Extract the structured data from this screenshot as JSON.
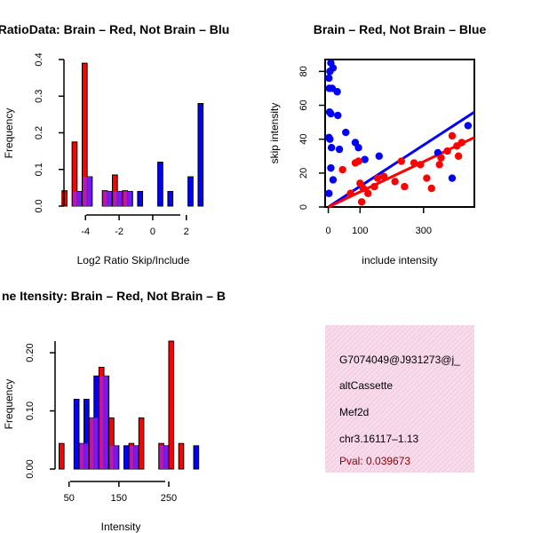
{
  "colors": {
    "red": "#ff0000",
    "blue": "#0000ff",
    "purple": "#a020f0",
    "pink_bg": "#f5d6e8",
    "pval": "#8b0000"
  },
  "chart_data": [
    {
      "type": "bar",
      "title": "RatioData: Brain – Red, Not Brain – Blu",
      "xlabel": "Log2 Ratio Skip/Include",
      "ylabel": "Frequency",
      "xlim": [
        -5.6,
        3.6
      ],
      "ylim": [
        0,
        0.4
      ],
      "xticks": [
        "-4",
        "-2",
        "0",
        "2"
      ],
      "yticks": [
        "0.0",
        "0.1",
        "0.2",
        "0.3",
        "0.4"
      ],
      "bins": [
        {
          "x0": -5.4,
          "x1": -4.8,
          "red": 0.042,
          "blue": 0.0
        },
        {
          "x0": -4.8,
          "x1": -4.2,
          "red": 0.175,
          "blue": 0.04
        },
        {
          "x0": -4.2,
          "x1": -3.6,
          "red": 0.39,
          "blue": 0.08
        },
        {
          "x0": -3.6,
          "x1": -3.0,
          "red": 0.0,
          "blue": 0.0
        },
        {
          "x0": -3.0,
          "x1": -2.4,
          "red": 0.042,
          "blue": 0.04
        },
        {
          "x0": -2.4,
          "x1": -1.8,
          "red": 0.085,
          "blue": 0.04
        },
        {
          "x0": -1.8,
          "x1": -1.2,
          "red": 0.042,
          "blue": 0.04
        },
        {
          "x0": -1.2,
          "x1": -0.6,
          "red": 0.0,
          "blue": 0.04
        },
        {
          "x0": -0.6,
          "x1": 0.0,
          "red": 0.0,
          "blue": 0.0
        },
        {
          "x0": 0.0,
          "x1": 0.6,
          "red": 0.0,
          "blue": 0.12
        },
        {
          "x0": 0.6,
          "x1": 1.2,
          "red": 0.0,
          "blue": 0.04
        },
        {
          "x0": 1.2,
          "x1": 1.8,
          "red": 0.0,
          "blue": 0.0
        },
        {
          "x0": 1.8,
          "x1": 2.4,
          "red": 0.0,
          "blue": 0.08
        },
        {
          "x0": 2.4,
          "x1": 3.0,
          "red": 0.0,
          "blue": 0.28
        }
      ]
    },
    {
      "type": "scatter",
      "title": "Brain – Red, Not Brain – Blue",
      "xlabel": "include intensity",
      "ylabel": "skip intensity",
      "xlim": [
        -10,
        460
      ],
      "ylim": [
        0,
        87
      ],
      "xticks": [
        "0",
        "100",
        "300"
      ],
      "yticks": [
        "0",
        "20",
        "40",
        "60",
        "80"
      ],
      "series": [
        {
          "name": "Not Brain",
          "color": "blue",
          "points": [
            [
              8,
              85
            ],
            [
              5,
              80
            ],
            [
              2,
              76
            ],
            [
              15,
              82
            ],
            [
              3,
              70
            ],
            [
              12,
              70
            ],
            [
              28,
              68
            ],
            [
              4,
              56
            ],
            [
              8,
              55
            ],
            [
              30,
              54
            ],
            [
              2,
              41
            ],
            [
              5,
              40
            ],
            [
              10,
              35
            ],
            [
              35,
              34
            ],
            [
              55,
              44
            ],
            [
              85,
              38
            ],
            [
              95,
              35
            ],
            [
              115,
              28
            ],
            [
              8,
              23
            ],
            [
              15,
              16
            ],
            [
              2,
              8
            ],
            [
              160,
              30
            ],
            [
              345,
              32
            ],
            [
              390,
              17
            ],
            [
              440,
              48
            ]
          ]
        },
        {
          "name": "Brain",
          "color": "red",
          "points": [
            [
              45,
              22
            ],
            [
              85,
              26
            ],
            [
              95,
              27
            ],
            [
              70,
              8
            ],
            [
              100,
              14
            ],
            [
              110,
              11
            ],
            [
              125,
              8
            ],
            [
              145,
              12
            ],
            [
              155,
              17
            ],
            [
              175,
              18
            ],
            [
              210,
              15
            ],
            [
              230,
              27
            ],
            [
              240,
              12
            ],
            [
              270,
              26
            ],
            [
              290,
              25
            ],
            [
              310,
              17
            ],
            [
              325,
              11
            ],
            [
              355,
              29
            ],
            [
              375,
              33
            ],
            [
              390,
              42
            ],
            [
              405,
              36
            ],
            [
              420,
              38
            ],
            [
              410,
              30
            ],
            [
              350,
              25
            ],
            [
              105,
              3
            ]
          ]
        }
      ],
      "fits": [
        {
          "color": "blue",
          "from": [
            0,
            0
          ],
          "to": [
            460,
            56
          ]
        },
        {
          "color": "red",
          "from": [
            0,
            0
          ],
          "to": [
            460,
            41
          ]
        }
      ]
    },
    {
      "type": "bar",
      "title": "ne Itensity: Brain – Red, Not Brain – B",
      "xlabel": "Intensity",
      "ylabel": "Frequency",
      "xlim": [
        22,
        332
      ],
      "ylim": [
        0,
        0.22
      ],
      "xticks": [
        "50",
        "150",
        "250"
      ],
      "yticks": [
        "0.00",
        "0.10",
        "0.20"
      ],
      "bins": [
        {
          "x0": 30,
          "x1": 50,
          "red": 0.044,
          "blue": 0.0
        },
        {
          "x0": 50,
          "x1": 70,
          "red": 0.0,
          "blue": 0.12
        },
        {
          "x0": 70,
          "x1": 90,
          "red": 0.044,
          "blue": 0.12
        },
        {
          "x0": 90,
          "x1": 110,
          "red": 0.088,
          "blue": 0.16
        },
        {
          "x0": 110,
          "x1": 130,
          "red": 0.175,
          "blue": 0.16
        },
        {
          "x0": 130,
          "x1": 150,
          "red": 0.088,
          "blue": 0.04
        },
        {
          "x0": 150,
          "x1": 170,
          "red": 0.0,
          "blue": 0.04
        },
        {
          "x0": 170,
          "x1": 190,
          "red": 0.044,
          "blue": 0.04
        },
        {
          "x0": 190,
          "x1": 210,
          "red": 0.088,
          "blue": 0.0
        },
        {
          "x0": 210,
          "x1": 230,
          "red": 0.0,
          "blue": 0.0
        },
        {
          "x0": 230,
          "x1": 250,
          "red": 0.044,
          "blue": 0.04
        },
        {
          "x0": 250,
          "x1": 270,
          "red": 0.22,
          "blue": 0.0
        },
        {
          "x0": 270,
          "x1": 290,
          "red": 0.044,
          "blue": 0.0
        },
        {
          "x0": 290,
          "x1": 310,
          "red": 0.0,
          "blue": 0.04
        }
      ]
    }
  ],
  "info": {
    "id": "G7074049@J931273@j_",
    "event_type": "altCassette",
    "gene": "Mef2d",
    "location": "chr3.16117–1.13",
    "pval": "Pval: 0.039673"
  }
}
